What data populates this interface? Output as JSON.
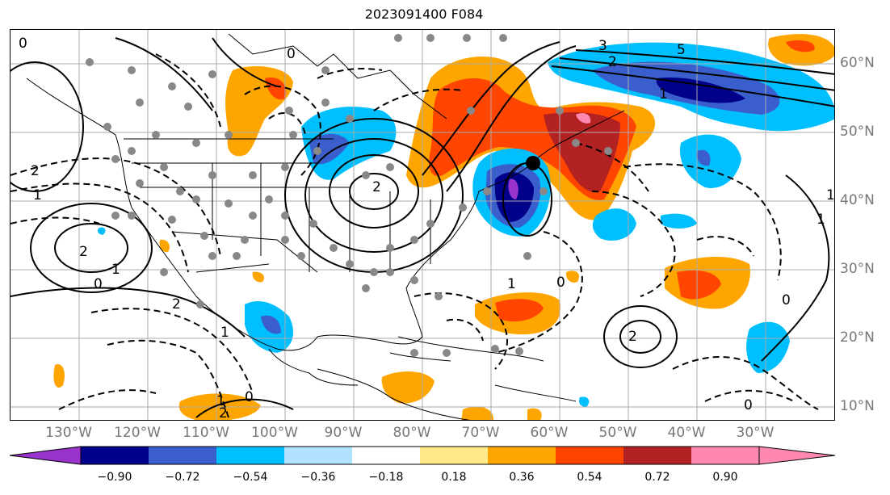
{
  "title": "2023091400 F084",
  "lon_labels": [
    "130°W",
    "120°W",
    "110°W",
    "100°W",
    "90°W",
    "80°W",
    "70°W",
    "60°W",
    "50°W",
    "40°W",
    "30°W"
  ],
  "lat_labels": [
    "60°N",
    "50°N",
    "40°N",
    "30°N",
    "20°N",
    "10°N"
  ],
  "colorbar": {
    "ticks": [
      "−0.90",
      "−0.72",
      "−0.54",
      "−0.36",
      "−0.18",
      "0.18",
      "0.36",
      "0.54",
      "0.72",
      "0.90"
    ],
    "colors": [
      "#9933cc",
      "#00008b",
      "#3a5fcd",
      "#00bfff",
      "#b0e2ff",
      "#ffffff",
      "#ffe88a",
      "#ffa500",
      "#ff4500",
      "#b22222",
      "#ff88b0"
    ]
  },
  "contour_labels": [
    "0",
    "2",
    "3",
    "2",
    "5",
    "0",
    "1",
    "2",
    "1",
    "0",
    "2",
    "1",
    "2",
    "0",
    "1",
    "2",
    "1",
    "0",
    "2",
    "1",
    "0",
    "1",
    "1",
    "0"
  ],
  "colors": {
    "grid": "#aaaaaa",
    "land_outline": "#000000",
    "station_dot": "#888888"
  }
}
